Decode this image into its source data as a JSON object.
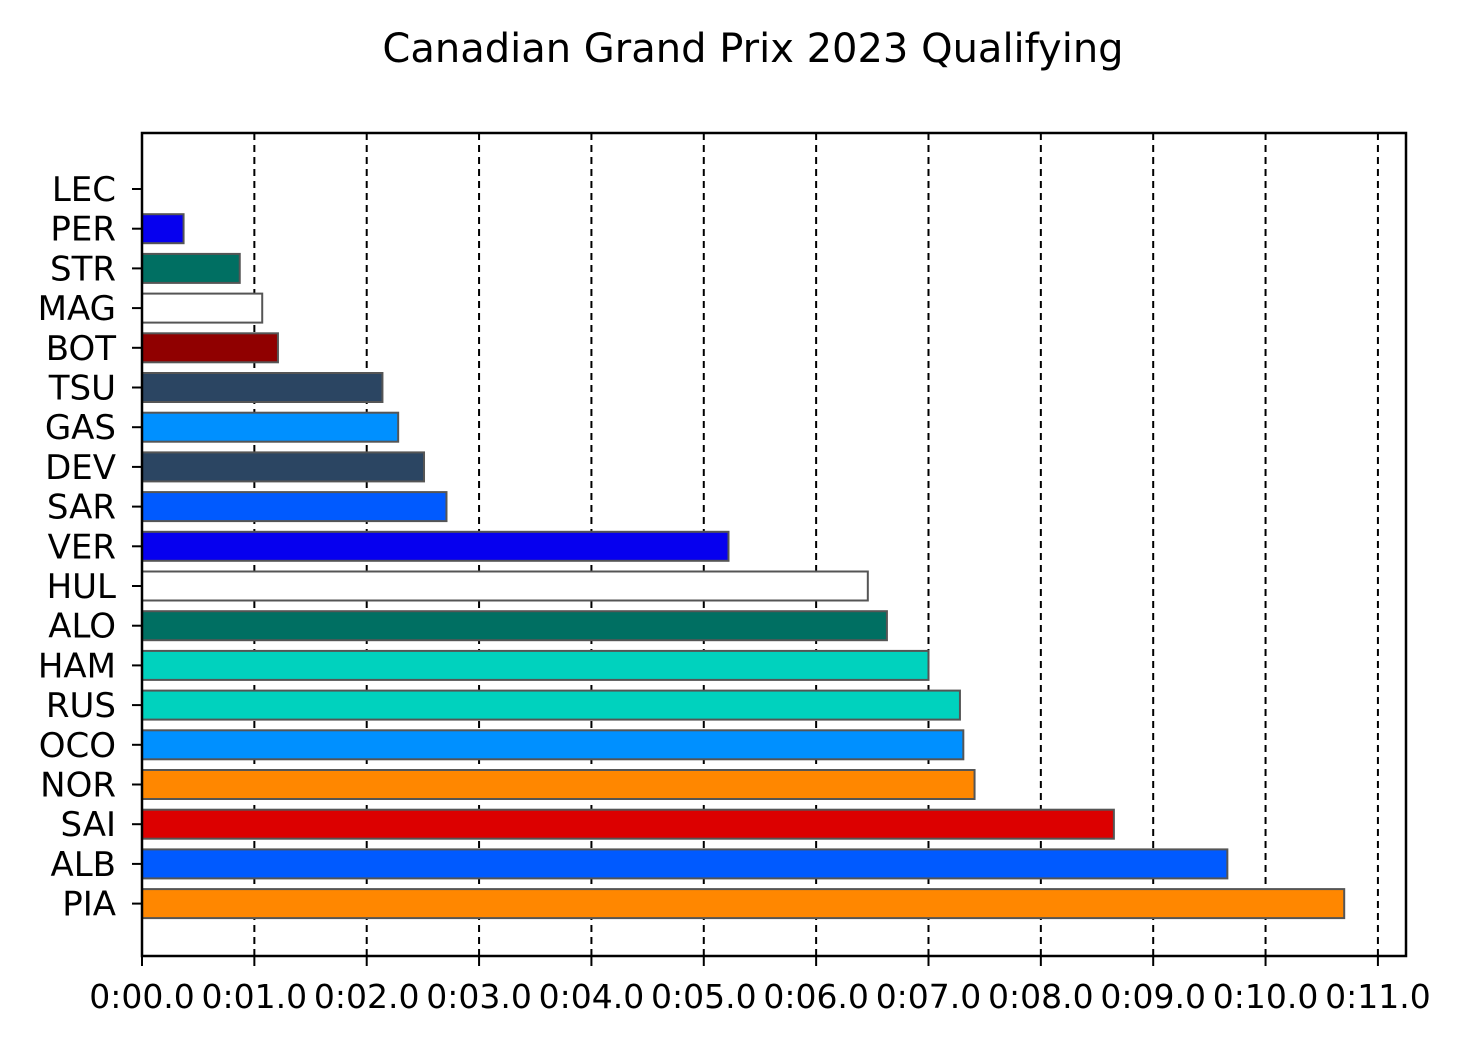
{
  "chart_data": {
    "type": "bar",
    "orientation": "horizontal",
    "title": "Canadian Grand Prix 2023 Qualifying",
    "xlabel": "",
    "ylabel": "",
    "categories": [
      "LEC",
      "PER",
      "STR",
      "MAG",
      "BOT",
      "TSU",
      "GAS",
      "DEV",
      "SAR",
      "VER",
      "HUL",
      "ALO",
      "HAM",
      "RUS",
      "OCO",
      "NOR",
      "SAI",
      "ALB",
      "PIA"
    ],
    "values": [
      0.0,
      0.37,
      0.87,
      1.07,
      1.21,
      2.14,
      2.28,
      2.51,
      2.71,
      5.22,
      6.46,
      6.63,
      7.0,
      7.28,
      7.31,
      7.41,
      8.65,
      9.66,
      10.7
    ],
    "colors": [
      "#dc0000",
      "#0600ef",
      "#006f62",
      "#ffffff",
      "#900000",
      "#2b4562",
      "#0090ff",
      "#2b4562",
      "#005aff",
      "#0600ef",
      "#ffffff",
      "#006f62",
      "#00d2be",
      "#00d2be",
      "#0090ff",
      "#ff8700",
      "#dc0000",
      "#005aff",
      "#ff8700"
    ],
    "xlim": [
      0,
      11.25
    ],
    "xticks": [
      0,
      1,
      2,
      3,
      4,
      5,
      6,
      7,
      8,
      9,
      10,
      11
    ],
    "xtick_labels": [
      "0:00.0",
      "0:01.0",
      "0:02.0",
      "0:03.0",
      "0:04.0",
      "0:05.0",
      "0:06.0",
      "0:07.0",
      "0:08.0",
      "0:09.0",
      "0:10.0",
      "0:11.0"
    ],
    "grid": "x, dashed",
    "y_inverted": true
  }
}
